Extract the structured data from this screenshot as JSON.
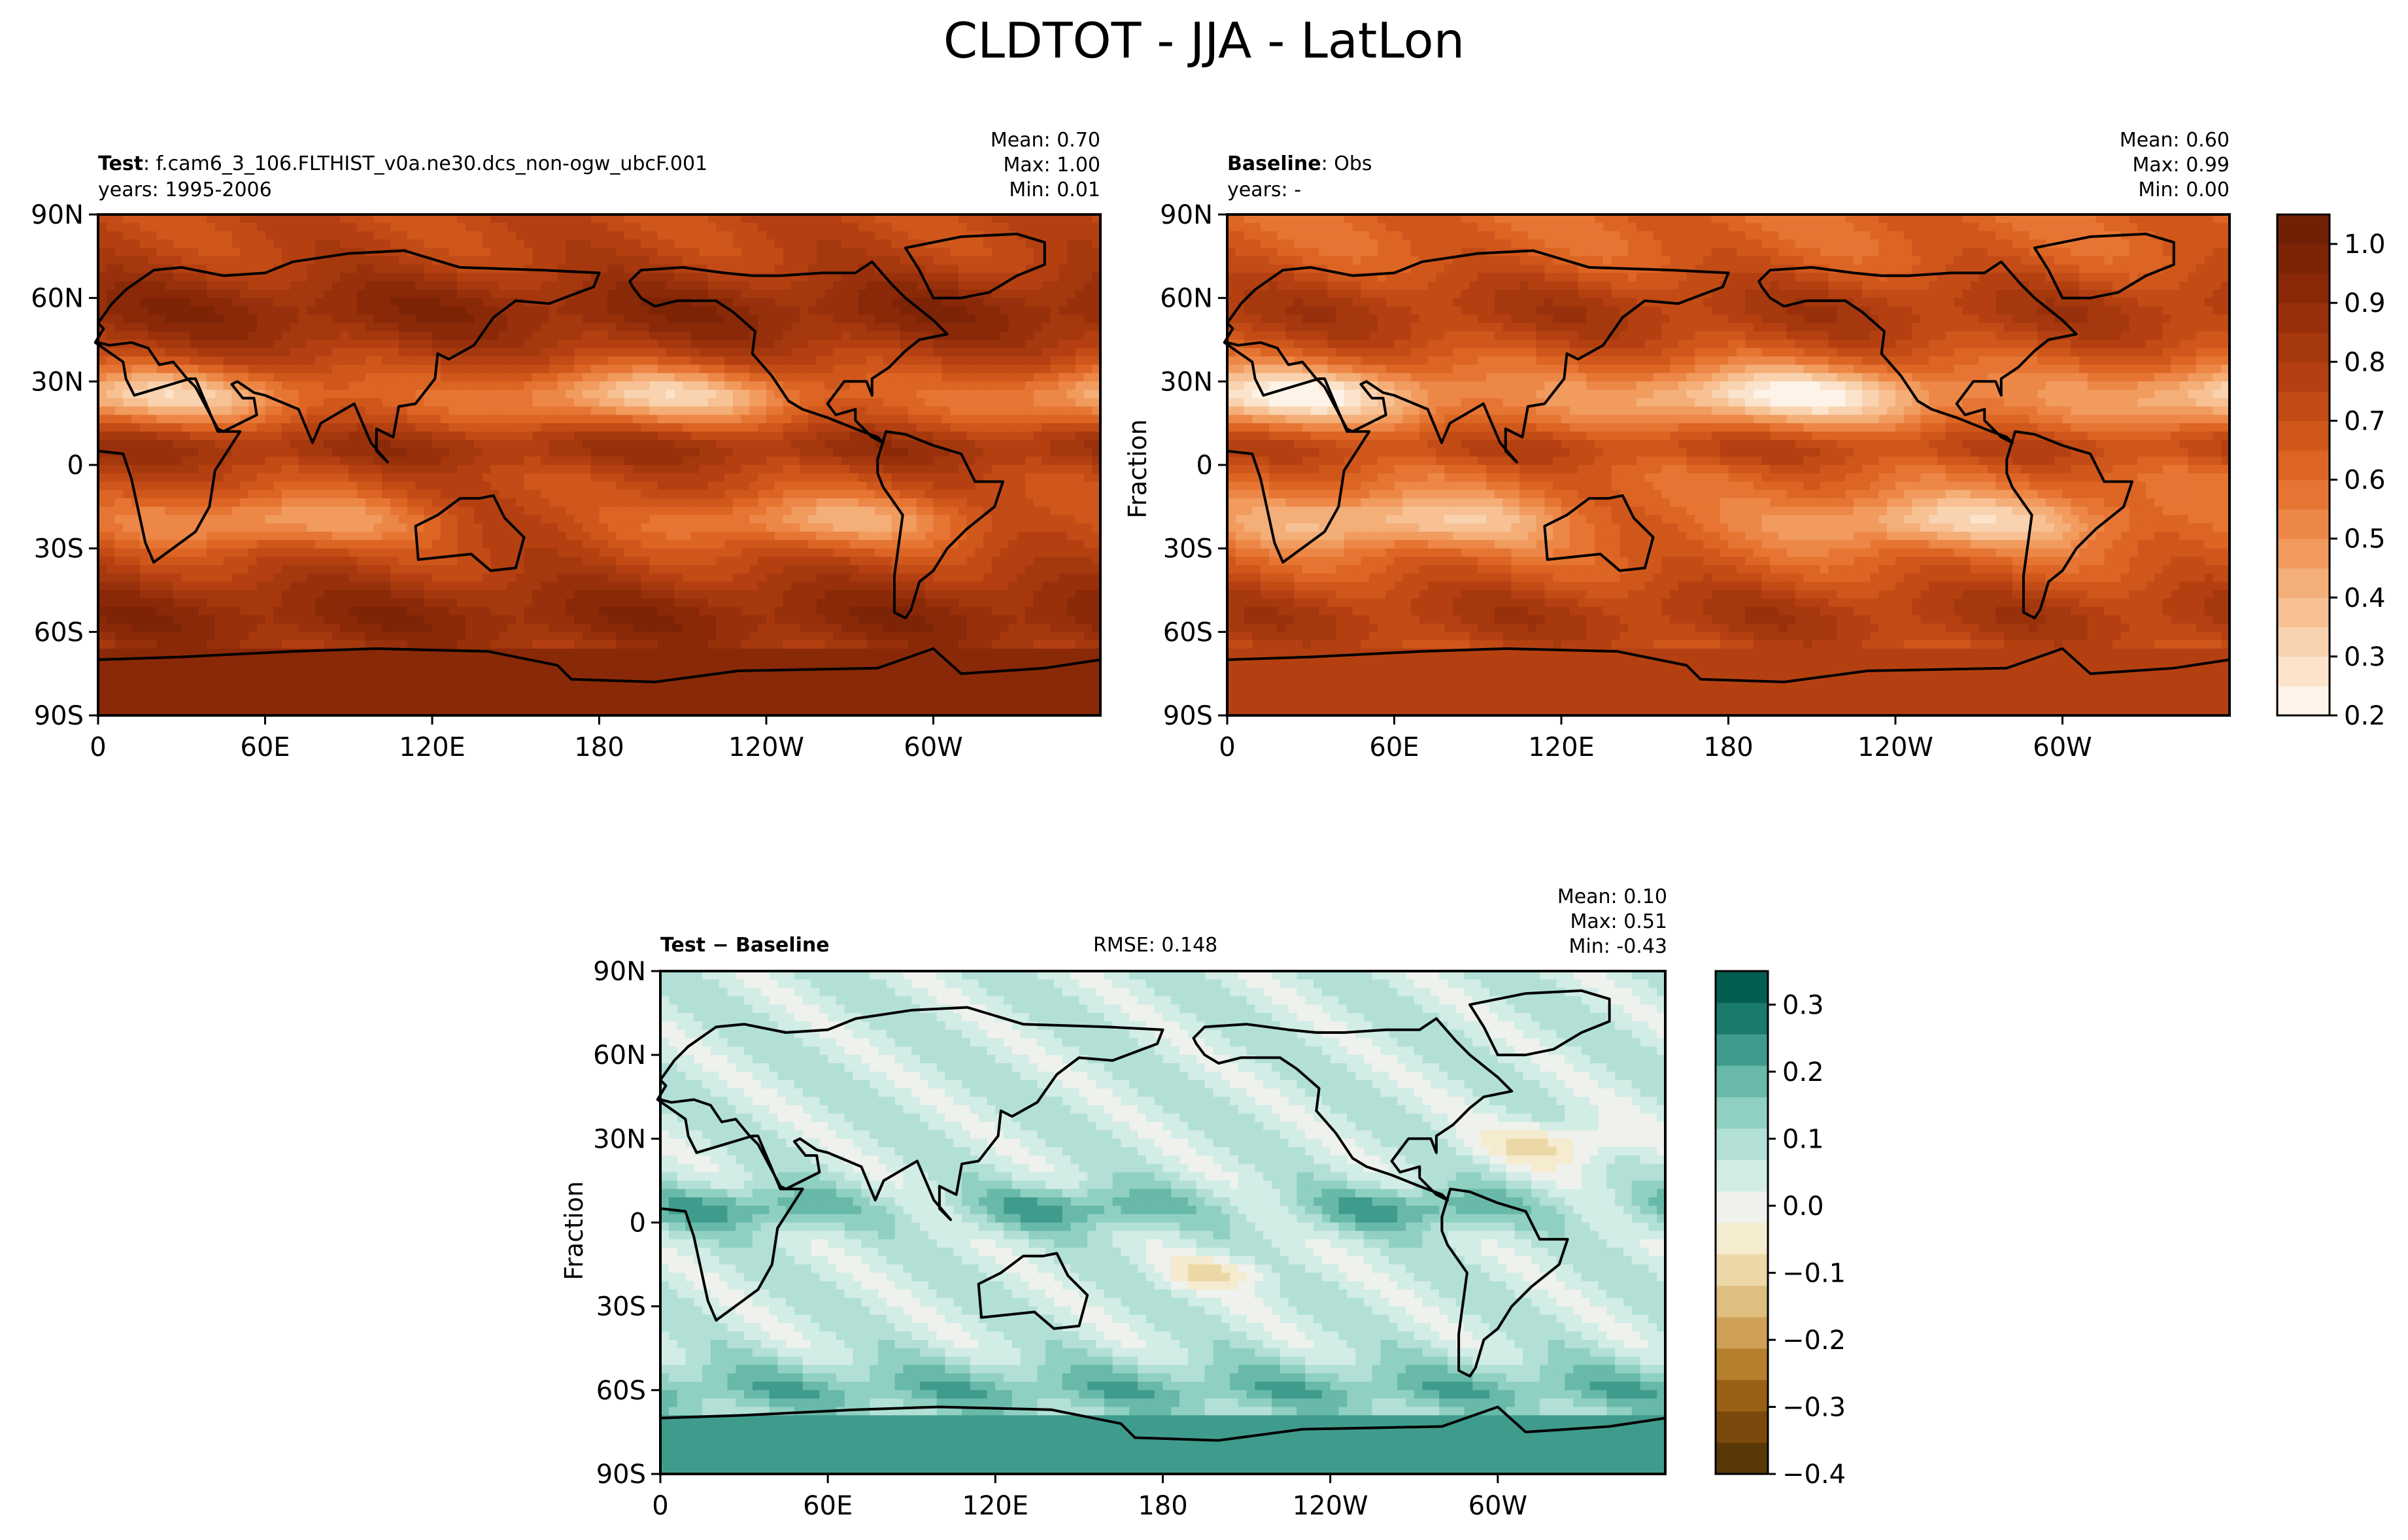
{
  "suptitle": "CLDTOT - JJA - LatLon",
  "panels": {
    "test": {
      "label_bold": "Test",
      "label_rest": ": f.cam6_3_106.FLTHIST_v0a.ne30.dcs_non-ogw_ubcF.001",
      "years": "years: 1995-2006",
      "mean": "Mean:  0.70",
      "max": "Max:  1.00",
      "min": "Min:  0.01"
    },
    "baseline": {
      "label_bold": "Baseline",
      "label_rest": ": Obs",
      "years": "years: -",
      "mean": "Mean:  0.60",
      "max": "Max:  0.99",
      "min": "Min:  0.00"
    },
    "diff": {
      "label": "Test − Baseline",
      "rmse": "RMSE: 0.148",
      "mean": "Mean:  0.10",
      "max": "Max:  0.51",
      "min": "Min: -0.43"
    }
  },
  "colorbar_label": "Fraction",
  "chart_data": [
    {
      "type": "heatmap",
      "title": "Test",
      "x_ticks": [
        "0",
        "60E",
        "120E",
        "180",
        "120W",
        "60W"
      ],
      "y_ticks": [
        "90N",
        "60N",
        "30N",
        "0",
        "30S",
        "60S",
        "90S"
      ],
      "stats": {
        "mean": 0.7,
        "max": 1.0,
        "min": 0.01
      },
      "levels": [
        0.2,
        0.25,
        0.3,
        0.35,
        0.4,
        0.45,
        0.5,
        0.55,
        0.6,
        0.65,
        0.7,
        0.75,
        0.8,
        0.85,
        0.9,
        0.95,
        1.0,
        1.05
      ],
      "colormap": "Oranges-Brown"
    },
    {
      "type": "heatmap",
      "title": "Baseline",
      "x_ticks": [
        "0",
        "60E",
        "120E",
        "180",
        "120W",
        "60W"
      ],
      "y_ticks": [
        "90N",
        "60N",
        "30N",
        "0",
        "30S",
        "60S",
        "90S"
      ],
      "stats": {
        "mean": 0.6,
        "max": 0.99,
        "min": 0.0
      },
      "colorbar": {
        "label": "Fraction",
        "ticks": [
          "1.0",
          "0.9",
          "0.8",
          "0.7",
          "0.6",
          "0.5",
          "0.4",
          "0.3",
          "0.2"
        ],
        "range": [
          0.2,
          1.05
        ]
      },
      "colors": [
        "#fdf3e8",
        "#fbe3cc",
        "#f9d3b0",
        "#f7c194",
        "#f4ae78",
        "#f19b5e",
        "#ed8747",
        "#e67533",
        "#dc6524",
        "#d0571b",
        "#c24b16",
        "#b44012",
        "#a6380e",
        "#98300b",
        "#8a2908",
        "#7d2306",
        "#702005"
      ]
    },
    {
      "type": "heatmap",
      "title": "Test − Baseline",
      "x_ticks": [
        "0",
        "60E",
        "120E",
        "180",
        "120W",
        "60W"
      ],
      "y_ticks": [
        "90N",
        "60N",
        "30N",
        "0",
        "30S",
        "60S",
        "90S"
      ],
      "stats": {
        "mean": 0.1,
        "max": 0.51,
        "min": -0.43,
        "rmse": 0.148
      },
      "colorbar": {
        "label": "Fraction",
        "ticks": [
          "0.3",
          "0.2",
          "0.1",
          "0.0",
          "−0.1",
          "−0.2",
          "−0.3",
          "−0.4"
        ],
        "range": [
          -0.4,
          0.35
        ]
      },
      "colors": [
        "#5a3707",
        "#7a4a0c",
        "#9a6015",
        "#b67f2d",
        "#cfa158",
        "#dfbe80",
        "#ecd8a7",
        "#f5ebce",
        "#eef1ec",
        "#d2ece6",
        "#b2e0d6",
        "#8fd0c2",
        "#68b9aa",
        "#3f9c8c",
        "#1a7a6c",
        "#035e50"
      ]
    }
  ]
}
